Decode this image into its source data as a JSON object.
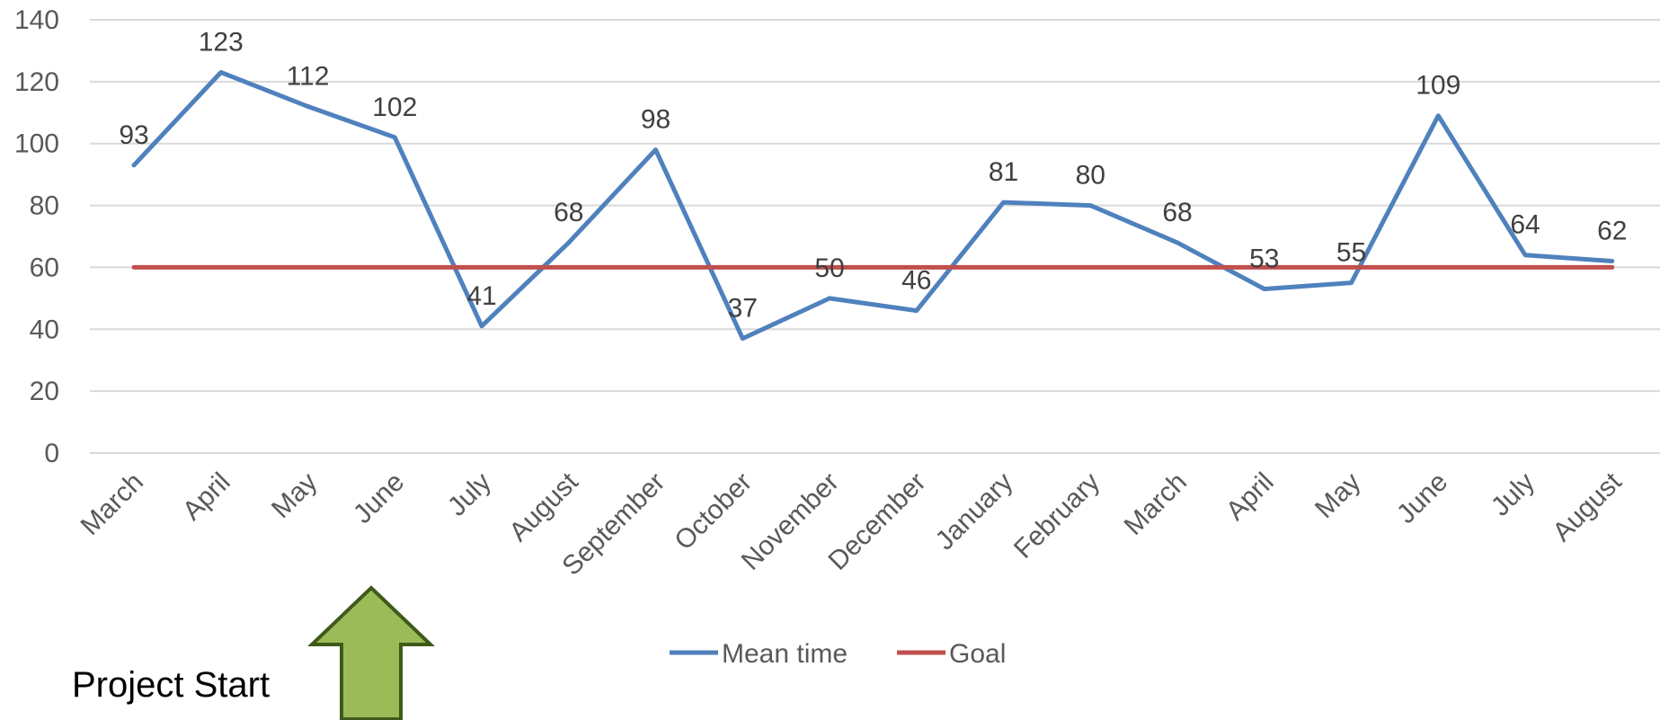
{
  "chart_data": {
    "type": "line",
    "categories": [
      "March",
      "April",
      "May",
      "June",
      "July",
      "August",
      "September",
      "October",
      "November",
      "December",
      "January",
      "February",
      "March",
      "April",
      "May",
      "June",
      "July",
      "August"
    ],
    "series": [
      {
        "name": "Mean time",
        "values": [
          93,
          123,
          112,
          102,
          41,
          68,
          98,
          37,
          50,
          46,
          81,
          80,
          68,
          53,
          55,
          109,
          64,
          62
        ],
        "color": "#4F81BD",
        "data_labels": true
      },
      {
        "name": "Goal",
        "values": [
          60,
          60,
          60,
          60,
          60,
          60,
          60,
          60,
          60,
          60,
          60,
          60,
          60,
          60,
          60,
          60,
          60,
          60
        ],
        "color": "#C0504D",
        "data_labels": false
      }
    ],
    "y_ticks": [
      0,
      20,
      40,
      60,
      80,
      100,
      120,
      140
    ],
    "ylim": [
      0,
      140
    ],
    "grid": true,
    "legend": {
      "position": "bottom"
    },
    "annotation": {
      "text": "Project Start",
      "arrow_color": "#9BBB59",
      "arrow_outline": "#3F5A1A",
      "at_category": "June"
    }
  }
}
